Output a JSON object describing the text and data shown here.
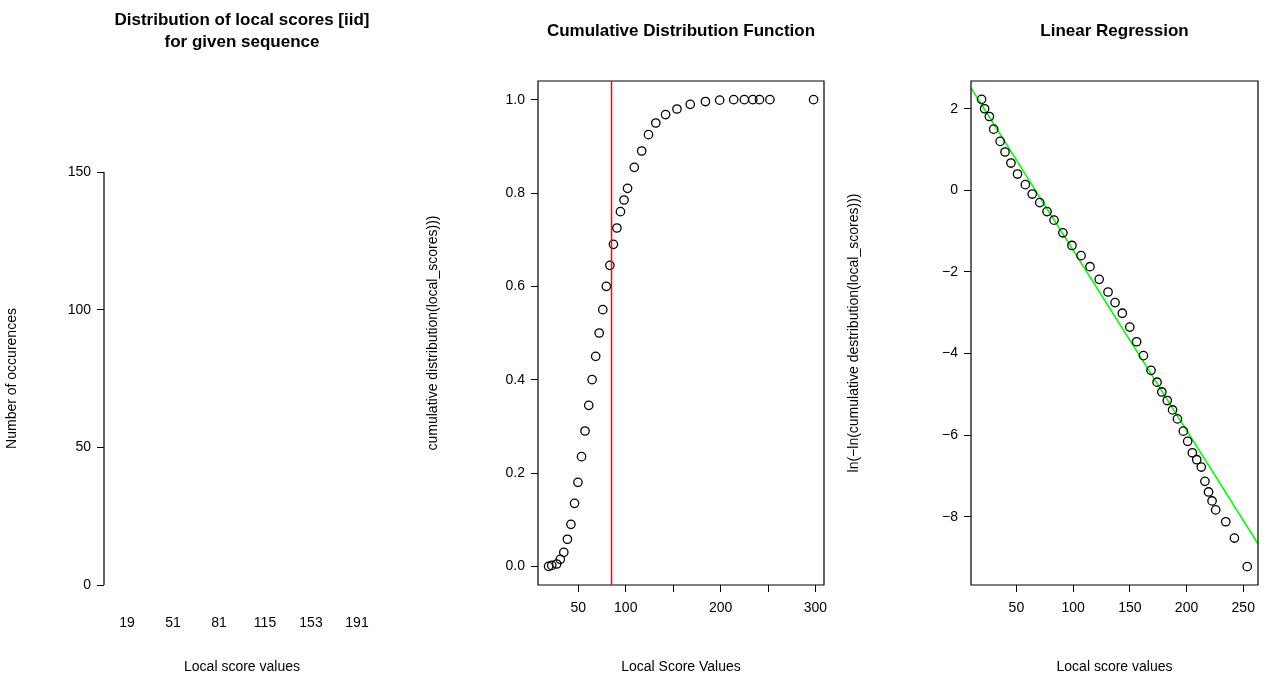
{
  "chart_data": [
    {
      "type": "bar",
      "title": "Distribution of local scores [iid]\nfor given sequence",
      "xlabel": "Local score values",
      "ylabel": "Number of occurences",
      "categories": [
        "19",
        "51",
        "81",
        "115",
        "153",
        "191"
      ],
      "values": [
        0,
        0,
        0,
        0,
        0,
        0
      ],
      "ylim": [
        0,
        150
      ],
      "yticks": [
        0,
        50,
        100,
        150
      ]
    },
    {
      "type": "scatter",
      "title": "Cumulative Distribution Function",
      "xlabel": "Local Score Values",
      "ylabel": "cumulative distribution(local_scores)))",
      "marker": "circle",
      "xlim": [
        7.5,
        309
      ],
      "xticks": [
        50,
        100,
        {
          "value": 150,
          "label": null
        },
        200,
        {
          "value": 250,
          "label": null
        },
        300
      ],
      "ylim": [
        -0.04,
        1.04
      ],
      "yticks": [
        {
          "value": 0,
          "label": "0.0"
        },
        0.2,
        0.4,
        0.6,
        0.8,
        {
          "value": 1,
          "label": "1.0"
        }
      ],
      "series": [
        {
          "color": "#000000",
          "x": [
            18.6,
            22,
            27.2,
            31,
            34.7,
            38.5,
            42.2,
            46,
            49.6,
            53.4,
            57.1,
            61,
            64.5,
            68.3,
            72,
            75.8,
            79.5,
            83.3,
            87,
            90.7,
            94.4,
            98.2,
            101.9,
            109,
            116.8,
            124,
            131.7,
            142,
            154,
            168,
            184,
            199,
            213.8,
            225,
            234,
            241,
            252,
            298
          ],
          "values": [
            0,
            0.002,
            0.005,
            0.015,
            0.03,
            0.058,
            0.09,
            0.135,
            0.18,
            0.235,
            0.29,
            0.345,
            0.4,
            0.45,
            0.5,
            0.55,
            0.6,
            0.645,
            0.69,
            0.725,
            0.76,
            0.785,
            0.81,
            0.855,
            0.89,
            0.925,
            0.95,
            0.968,
            0.98,
            0.99,
            0.996,
            0.999,
            1,
            1,
            1,
            1,
            1,
            1
          ]
        }
      ],
      "ref_lines": [
        {
          "axis": "x",
          "value": 85,
          "color": "#ff0000"
        }
      ]
    },
    {
      "type": "scatter",
      "title": "Linear Regression",
      "xlabel": "Local score values",
      "ylabel": "ln(−ln(cumulative destribution(local_scores)))",
      "marker": "circle",
      "xlim": [
        10,
        263
      ],
      "xticks": [
        50,
        100,
        150,
        200,
        250
      ],
      "ylim": [
        -9.67,
        2.68
      ],
      "yticks": [
        {
          "value": -8,
          "label": "−8"
        },
        {
          "value": -6,
          "label": "−6"
        },
        {
          "value": -4,
          "label": "−4"
        },
        {
          "value": -2,
          "label": "−2"
        },
        0,
        2
      ],
      "series": [
        {
          "color": "#000000",
          "x": [
            19.3,
            22,
            26.2,
            30,
            35.7,
            40,
            45.2,
            51,
            57.9,
            64,
            70.6,
            77,
            83.2,
            91,
            99,
            107,
            114.9,
            123,
            130.8,
            137,
            143.4,
            150,
            156,
            162,
            168.7,
            174,
            178.2,
            183,
            187.7,
            192,
            197.2,
            201,
            205.1,
            209,
            213,
            216.2,
            219.4,
            222.5,
            225.7,
            234.6,
            242.2,
            253.5
          ],
          "values": [
            2.23,
            2.0,
            1.81,
            1.5,
            1.2,
            0.94,
            0.67,
            0.4,
            0.14,
            -0.09,
            -0.3,
            -0.52,
            -0.73,
            -1.04,
            -1.35,
            -1.6,
            -1.87,
            -2.18,
            -2.49,
            -2.75,
            -3.01,
            -3.35,
            -3.71,
            -4.05,
            -4.41,
            -4.7,
            -4.94,
            -5.15,
            -5.38,
            -5.6,
            -5.9,
            -6.15,
            -6.43,
            -6.6,
            -6.78,
            -7.13,
            -7.39,
            -7.61,
            -7.83,
            -8.12,
            -8.52,
            -9.22
          ]
        },
        {
          "type": "line",
          "color": "#00ff00",
          "marker": "none",
          "x": [
            10,
            263
          ],
          "values": [
            2.51,
            -8.66
          ]
        }
      ]
    }
  ]
}
